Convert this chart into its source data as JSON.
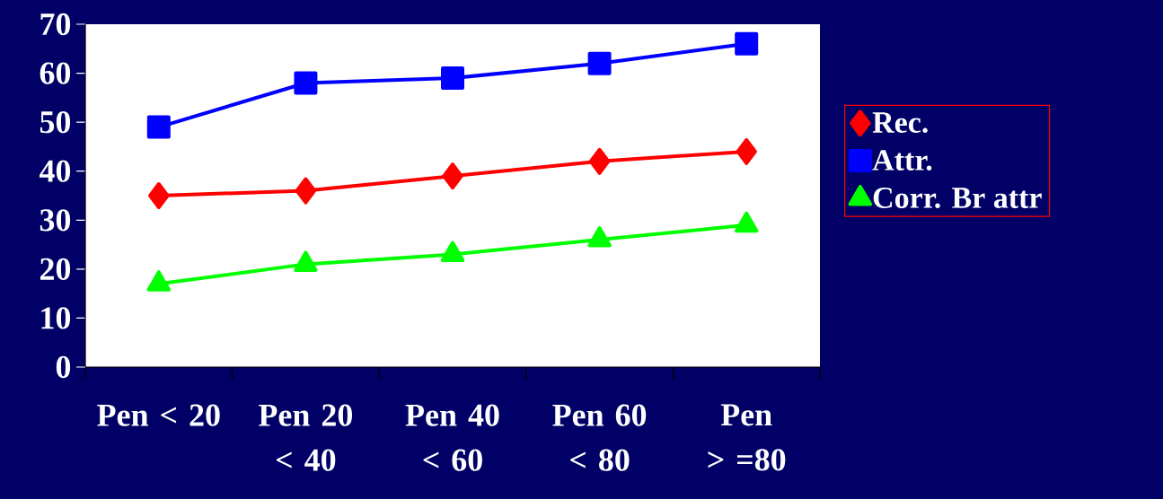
{
  "chart_data": {
    "type": "line",
    "categories": [
      "Pen < 20",
      "Pen 20 < 40",
      "Pen 40 < 60",
      "Pen 60 < 80",
      "Pen > =80"
    ],
    "series": [
      {
        "name": "Rec.",
        "color": "#ff0000",
        "marker": "diamond",
        "values": [
          35,
          36,
          39,
          42,
          44
        ]
      },
      {
        "name": "Attr.",
        "color": "#0000ff",
        "marker": "square",
        "values": [
          49,
          58,
          59,
          62,
          66
        ]
      },
      {
        "name": "Corr. Br attr",
        "color": "#00ff00",
        "marker": "triangle",
        "values": [
          17,
          21,
          23,
          26,
          29
        ]
      }
    ],
    "ylim": [
      0,
      70
    ],
    "yticks": [
      0,
      10,
      20,
      30,
      40,
      50,
      60,
      70
    ],
    "legend": "right"
  }
}
